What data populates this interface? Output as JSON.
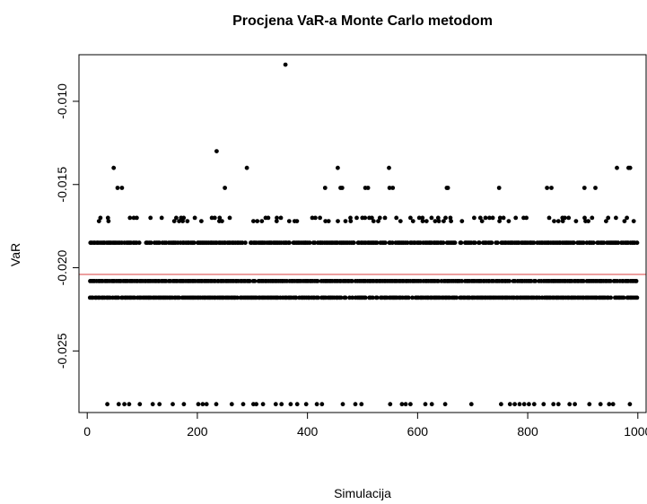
{
  "chart_data": {
    "type": "scatter",
    "title": "Procjena VaR-a Monte Carlo metodom",
    "xlabel": "Simulacija",
    "ylabel": "VaR",
    "xlim": [
      -15,
      1015
    ],
    "ylim": [
      -0.0287,
      -0.0072
    ],
    "x_ticks": [
      0,
      200,
      400,
      600,
      800,
      1000
    ],
    "x_tick_labels": [
      "0",
      "200",
      "400",
      "600",
      "800",
      "1000"
    ],
    "y_ticks": [
      -0.01,
      -0.015,
      -0.02,
      -0.025
    ],
    "y_tick_labels": [
      "-0.010",
      "-0.015",
      "-0.020",
      "-0.025"
    ],
    "reference_line": {
      "y": -0.0204,
      "color": "#e06666"
    },
    "point_color": "#000000",
    "grid": false,
    "legend": "none",
    "points": [
      {
        "x": 360,
        "y": -0.0078
      },
      {
        "x": 235,
        "y": -0.013
      },
      {
        "x": 48,
        "y": -0.014
      },
      {
        "x": 290,
        "y": -0.014
      },
      {
        "x": 455,
        "y": -0.014
      },
      {
        "x": 548,
        "y": -0.014
      },
      {
        "x": 962,
        "y": -0.014
      },
      {
        "x": 983,
        "y": -0.014
      },
      {
        "x": 986,
        "y": -0.014
      },
      {
        "x": 55,
        "y": -0.0152
      },
      {
        "x": 63,
        "y": -0.0152
      },
      {
        "x": 250,
        "y": -0.0152
      },
      {
        "x": 432,
        "y": -0.0152
      },
      {
        "x": 460,
        "y": -0.0152
      },
      {
        "x": 463,
        "y": -0.0152
      },
      {
        "x": 505,
        "y": -0.0152
      },
      {
        "x": 510,
        "y": -0.0152
      },
      {
        "x": 549,
        "y": -0.0152
      },
      {
        "x": 555,
        "y": -0.0152
      },
      {
        "x": 653,
        "y": -0.0152
      },
      {
        "x": 655,
        "y": -0.0152
      },
      {
        "x": 748,
        "y": -0.0152
      },
      {
        "x": 835,
        "y": -0.0152
      },
      {
        "x": 843,
        "y": -0.0152
      },
      {
        "x": 903,
        "y": -0.0152
      },
      {
        "x": 923,
        "y": -0.0152
      }
    ],
    "bands": [
      {
        "y": -0.017,
        "x_start": 15,
        "x_end": 1000,
        "step": 7,
        "seed": 1,
        "density": 0.42
      },
      {
        "y": -0.0172,
        "x_start": 15,
        "x_end": 1000,
        "step": 8,
        "seed": 2,
        "density": 0.35
      },
      {
        "y": -0.0185,
        "x_start": 5,
        "x_end": 1000,
        "step": 3,
        "seed": 3,
        "density": 0.9
      },
      {
        "y": -0.0208,
        "x_start": 5,
        "x_end": 1000,
        "step": 3,
        "seed": 4,
        "density": 0.95
      },
      {
        "y": -0.0218,
        "x_start": 5,
        "x_end": 1000,
        "step": 3,
        "seed": 5,
        "density": 0.93
      },
      {
        "y": -0.0282,
        "x_start": 30,
        "x_end": 1000,
        "step": 9,
        "seed": 6,
        "density": 0.45
      }
    ]
  }
}
